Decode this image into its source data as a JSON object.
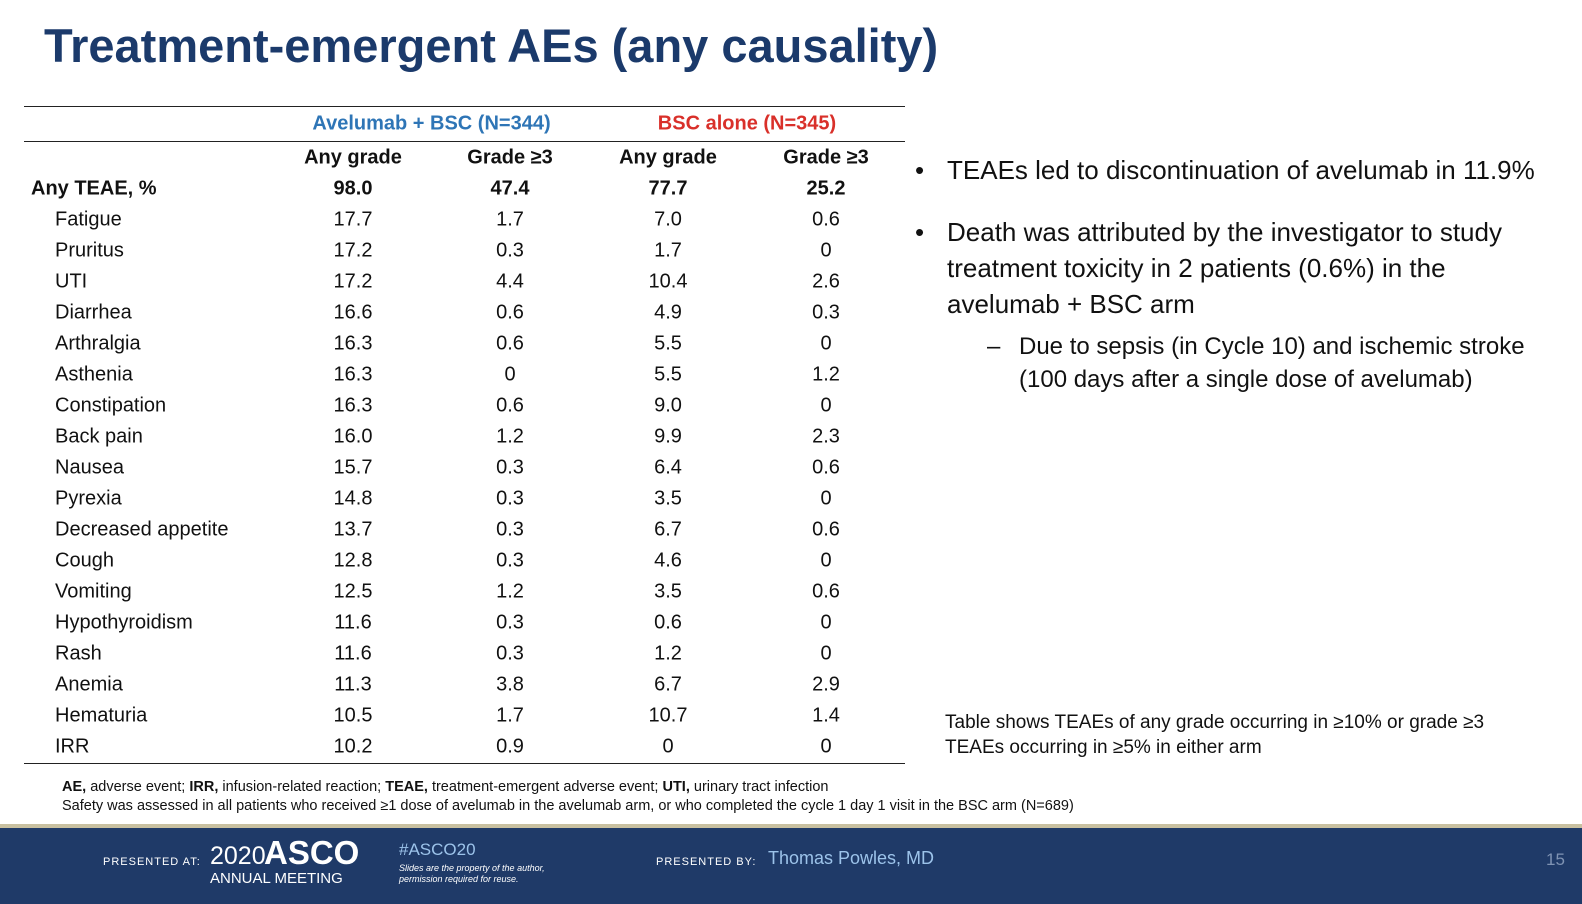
{
  "title": "Treatment-emergent AEs (any causality)",
  "table": {
    "groups": [
      "Avelumab + BSC (N=344)",
      "BSC alone (N=345)"
    ],
    "columns": [
      "Any grade",
      "Grade ≥3",
      "Any grade",
      "Grade ≥3"
    ],
    "rows": [
      [
        "Any TEAE, %",
        "98.0",
        "47.4",
        "77.7",
        "25.2"
      ],
      [
        "Fatigue",
        "17.7",
        "1.7",
        "7.0",
        "0.6"
      ],
      [
        "Pruritus",
        "17.2",
        "0.3",
        "1.7",
        "0"
      ],
      [
        "UTI",
        "17.2",
        "4.4",
        "10.4",
        "2.6"
      ],
      [
        "Diarrhea",
        "16.6",
        "0.6",
        "4.9",
        "0.3"
      ],
      [
        "Arthralgia",
        "16.3",
        "0.6",
        "5.5",
        "0"
      ],
      [
        "Asthenia",
        "16.3",
        "0",
        "5.5",
        "1.2"
      ],
      [
        "Constipation",
        "16.3",
        "0.6",
        "9.0",
        "0"
      ],
      [
        "Back pain",
        "16.0",
        "1.2",
        "9.9",
        "2.3"
      ],
      [
        "Nausea",
        "15.7",
        "0.3",
        "6.4",
        "0.6"
      ],
      [
        "Pyrexia",
        "14.8",
        "0.3",
        "3.5",
        "0"
      ],
      [
        "Decreased appetite",
        "13.7",
        "0.3",
        "6.7",
        "0.6"
      ],
      [
        "Cough",
        "12.8",
        "0.3",
        "4.6",
        "0"
      ],
      [
        "Vomiting",
        "12.5",
        "1.2",
        "3.5",
        "0.6"
      ],
      [
        "Hypothyroidism",
        "11.6",
        "0.3",
        "0.6",
        "0"
      ],
      [
        "Rash",
        "11.6",
        "0.3",
        "1.2",
        "0"
      ],
      [
        "Anemia",
        "11.3",
        "3.8",
        "6.7",
        "2.9"
      ],
      [
        "Hematuria",
        "10.5",
        "1.7",
        "10.7",
        "1.4"
      ],
      [
        "IRR",
        "10.2",
        "0.9",
        "0",
        "0"
      ]
    ]
  },
  "bullets": [
    {
      "text": "TEAEs led to discontinuation of avelumab in 11.9%"
    },
    {
      "text": "Death was attributed by the investigator to study treatment toxicity in 2 patients (0.6%) in the avelumab + BSC arm",
      "sub": "Due to sepsis (in Cycle 10) and ischemic stroke (100 days after a single dose of avelumab)"
    }
  ],
  "table_note": "Table shows TEAEs of any grade occurring in ≥10% or grade ≥3 TEAEs occurring in ≥5% in either arm",
  "footnotes": {
    "abbreviations": [
      {
        "term": "AE,",
        "definition": "adverse event;"
      },
      {
        "term": "IRR,",
        "definition": "infusion-related reaction;"
      },
      {
        "term": "TEAE,",
        "definition": "treatment-emergent adverse event;"
      },
      {
        "term": "UTI,",
        "definition": "urinary tract infection"
      }
    ],
    "safety": "Safety was assessed in all patients who received ≥1 dose of avelumab in the avelumab arm, or who completed the cycle 1 day 1 visit in the BSC arm (N=689)"
  },
  "footer": {
    "presented_at": "PRESENTED AT:",
    "year": "2020",
    "asco": "ASCO",
    "meeting": "ANNUAL MEETING",
    "hashtag": "#ASCO20",
    "disclaimer": "Slides are the property of the author, permission required for reuse.",
    "presented_by": "PRESENTED BY:",
    "presenter": "Thomas Powles, MD",
    "page": "15"
  }
}
